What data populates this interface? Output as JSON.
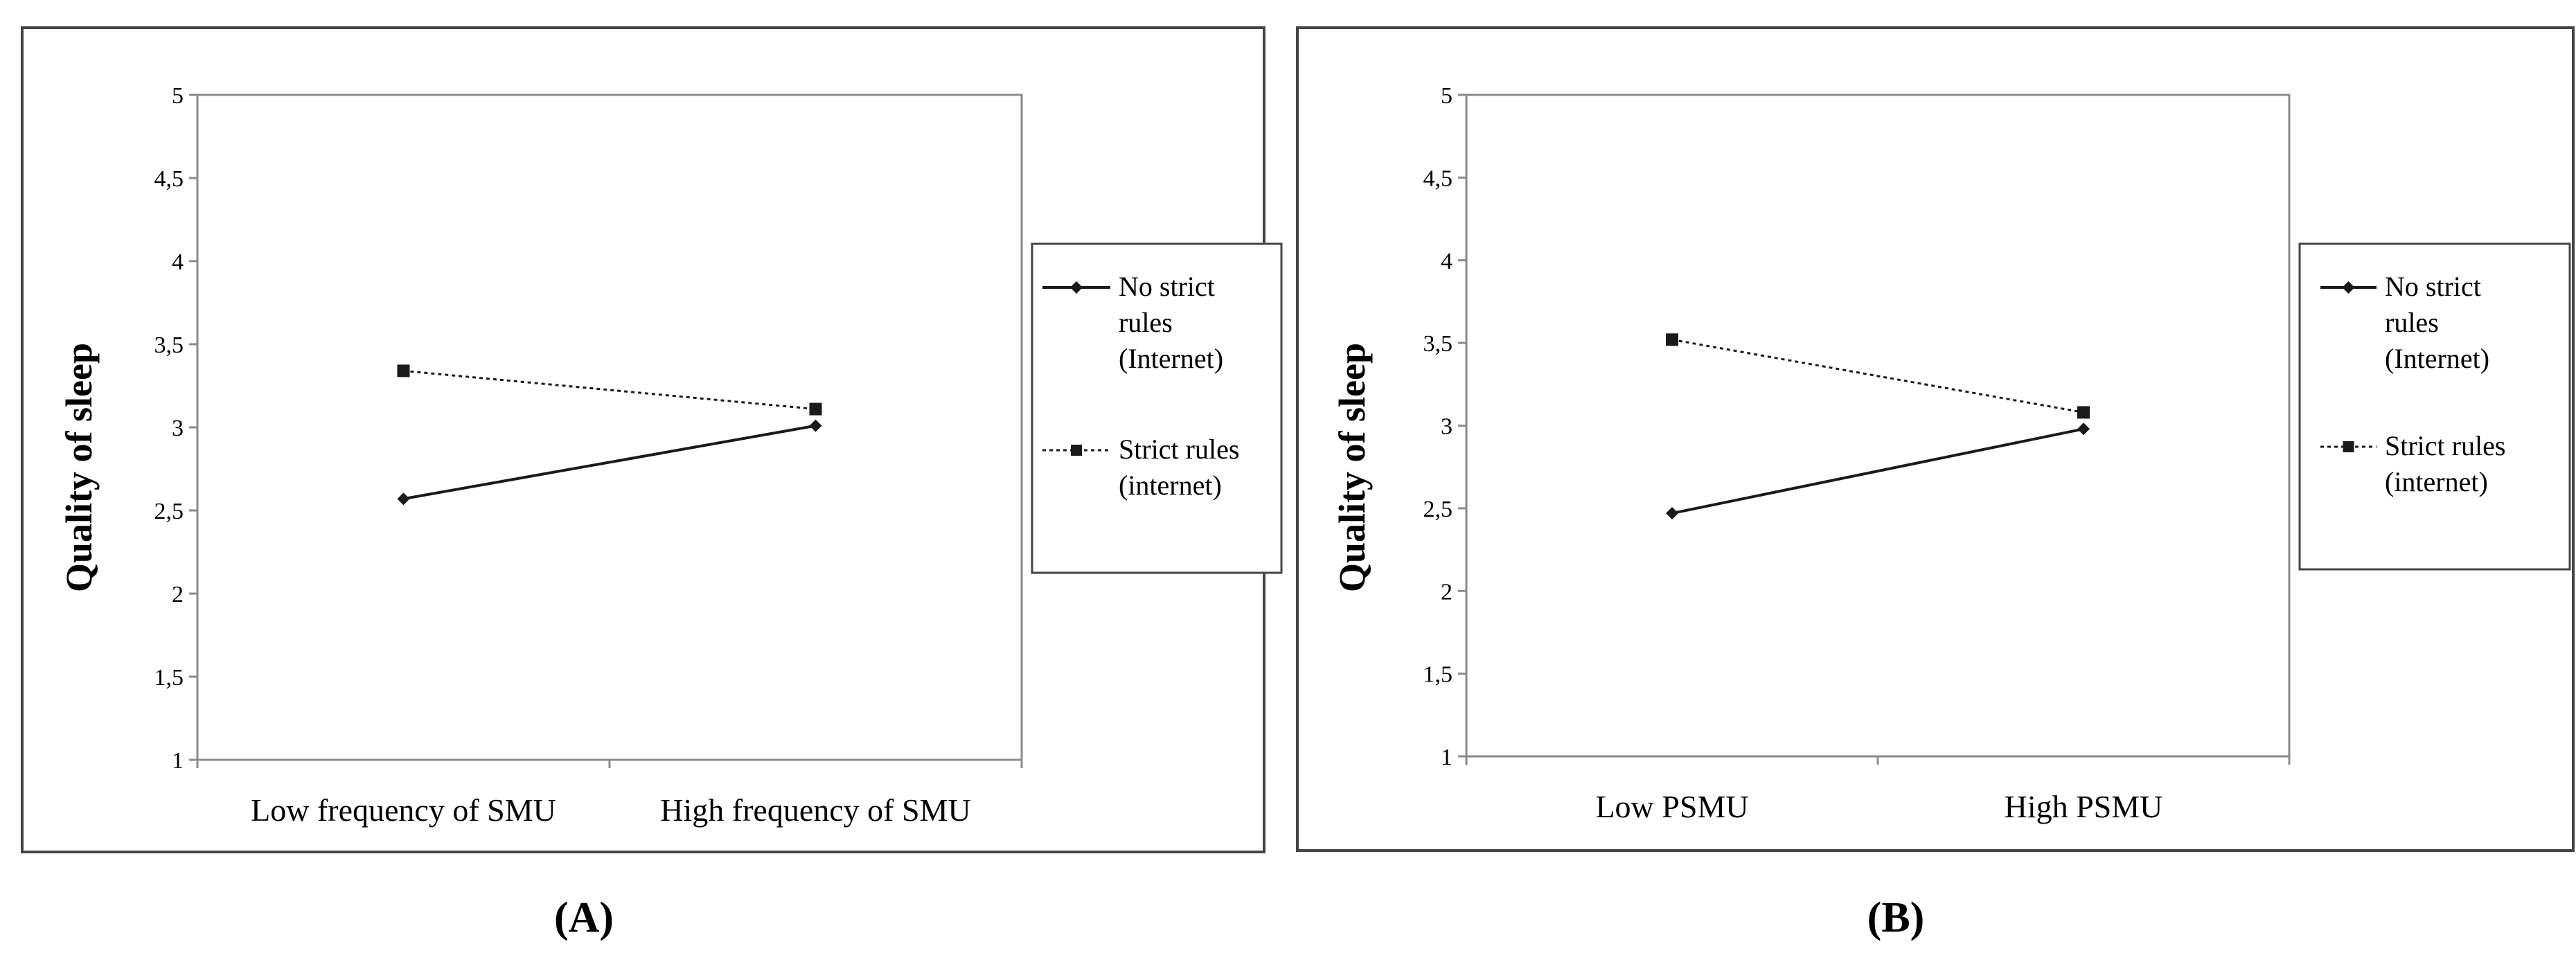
{
  "chart_data": [
    {
      "panel_label": "(A)",
      "type": "line",
      "categories": [
        "Low frequency of SMU",
        "High frequency of SMU"
      ],
      "series": [
        {
          "name": "No strict rules (Internet)",
          "name_lines": [
            "No strict",
            "rules",
            "(Internet)"
          ],
          "marker": "diamond",
          "dash": "solid",
          "values": [
            2.57,
            3.01
          ]
        },
        {
          "name": "Strict rules (internet)",
          "name_lines": [
            "Strict rules",
            "(internet)"
          ],
          "marker": "square",
          "dash": "dotted",
          "values": [
            3.34,
            3.11
          ]
        }
      ],
      "ylabel": "Quality of sleep",
      "ylim": [
        1,
        5
      ],
      "yticks": [
        1,
        1.5,
        2,
        2.5,
        3,
        3.5,
        4,
        4.5,
        5
      ],
      "ytick_labels": [
        "1",
        "1,5",
        "2",
        "2,5",
        "3",
        "3,5",
        "4",
        "4,5",
        "5"
      ],
      "grid": false,
      "legend": "right"
    },
    {
      "panel_label": "(B)",
      "type": "line",
      "categories": [
        "Low PSMU",
        "High PSMU"
      ],
      "series": [
        {
          "name": "No strict rules (Internet)",
          "name_lines": [
            "No strict",
            "rules",
            "(Internet)"
          ],
          "marker": "diamond",
          "dash": "solid",
          "values": [
            2.47,
            2.98
          ]
        },
        {
          "name": "Strict rules (internet)",
          "name_lines": [
            "Strict rules",
            "(internet)"
          ],
          "marker": "square",
          "dash": "dotted",
          "values": [
            3.52,
            3.08
          ]
        }
      ],
      "ylabel": "Quality of sleep",
      "ylim": [
        1,
        5
      ],
      "yticks": [
        1,
        1.5,
        2,
        2.5,
        3,
        3.5,
        4,
        4.5,
        5
      ],
      "ytick_labels": [
        "1",
        "1,5",
        "2",
        "2,5",
        "3",
        "3,5",
        "4",
        "4,5",
        "5"
      ],
      "grid": false,
      "legend": "right"
    }
  ],
  "colors": {
    "line": "#1a1a1a",
    "frame": "#444444",
    "axis": "#8a8a8a",
    "text": "#000000"
  }
}
